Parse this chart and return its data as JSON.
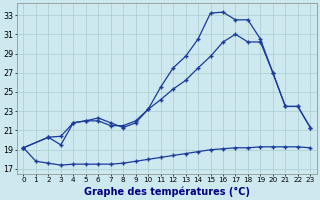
{
  "title": "Graphe des températures (°C)",
  "background_color": "#cde8ee",
  "grid_color": "#aacccc",
  "line_color": "#1a3a9c",
  "x_labels": [
    "0",
    "1",
    "2",
    "3",
    "4",
    "5",
    "6",
    "7",
    "8",
    "9",
    "10",
    "11",
    "12",
    "13",
    "14",
    "15",
    "16",
    "17",
    "18",
    "19",
    "20",
    "21",
    "22",
    "23"
  ],
  "y_ticks": [
    17,
    19,
    21,
    23,
    25,
    27,
    29,
    31,
    33
  ],
  "ylim": [
    16.5,
    34.2
  ],
  "xlim": [
    -0.5,
    23.5
  ],
  "line1_x": [
    0,
    1,
    2,
    3,
    4,
    5,
    6,
    7,
    8,
    9,
    10,
    11,
    12,
    13,
    14,
    15,
    16,
    17,
    18,
    19,
    20,
    21,
    22,
    23
  ],
  "line1_y": [
    19.2,
    17.8,
    17.6,
    17.4,
    17.5,
    17.5,
    17.5,
    17.5,
    17.6,
    17.8,
    18.0,
    18.2,
    18.4,
    18.6,
    18.8,
    19.0,
    19.1,
    19.2,
    19.2,
    19.3,
    19.3,
    19.3,
    19.3,
    19.2
  ],
  "line2_x": [
    0,
    2,
    3,
    4,
    5,
    6,
    7,
    8,
    9,
    10,
    11,
    12,
    13,
    14,
    15,
    16,
    17,
    18,
    19,
    20,
    21,
    22,
    23
  ],
  "line2_y": [
    19.2,
    20.3,
    20.4,
    21.8,
    22.0,
    22.0,
    21.5,
    21.5,
    22.0,
    23.2,
    24.2,
    25.3,
    26.2,
    27.5,
    28.7,
    30.2,
    31.0,
    30.2,
    30.2,
    27.0,
    23.5,
    23.5,
    21.3
  ],
  "line3_x": [
    0,
    2,
    3,
    4,
    5,
    6,
    7,
    8,
    9,
    10,
    11,
    12,
    13,
    14,
    15,
    16,
    17,
    18,
    19,
    20,
    21,
    22,
    23
  ],
  "line3_y": [
    19.2,
    20.3,
    19.5,
    21.8,
    22.0,
    22.3,
    21.8,
    21.3,
    21.8,
    23.2,
    25.5,
    27.5,
    28.7,
    30.5,
    33.2,
    33.3,
    32.5,
    32.5,
    30.5,
    27.0,
    23.5,
    23.5,
    21.3
  ]
}
